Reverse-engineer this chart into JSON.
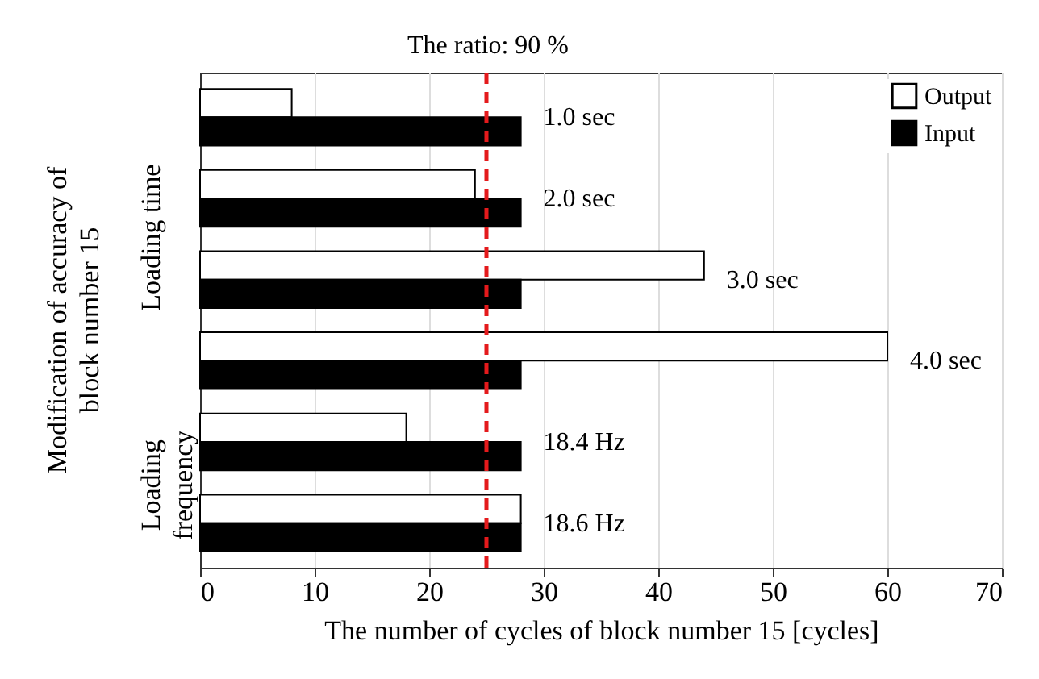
{
  "chart_data": {
    "type": "bar",
    "orientation": "horizontal",
    "xlabel": "The number of cycles of block number 15 [cycles]",
    "ylabel": "Modification of accuracy of block number 15",
    "categories": [
      "1.0 sec",
      "2.0 sec",
      "3.0 sec",
      "4.0 sec",
      "18.4 Hz",
      "18.6 Hz"
    ],
    "series": [
      {
        "name": "Output",
        "color": "#ffffff",
        "values": [
          8,
          24,
          44,
          60,
          18,
          28
        ]
      },
      {
        "name": "Input",
        "color": "#000000",
        "values": [
          28,
          28,
          28,
          28,
          28,
          28
        ]
      }
    ],
    "xlim": [
      0,
      70
    ],
    "xticks": [
      0,
      10,
      20,
      30,
      40,
      50,
      60,
      70
    ],
    "grid": "x",
    "legend": "top right",
    "tick_labels": "x",
    "title": "The ratio: 90 %",
    "ref_lines": [
      {
        "axis": "x",
        "value": 25,
        "color": "#e41a1c",
        "line_style": "dashed"
      }
    ],
    "annotations": [
      "Loading time",
      "Loading frequency"
    ]
  }
}
